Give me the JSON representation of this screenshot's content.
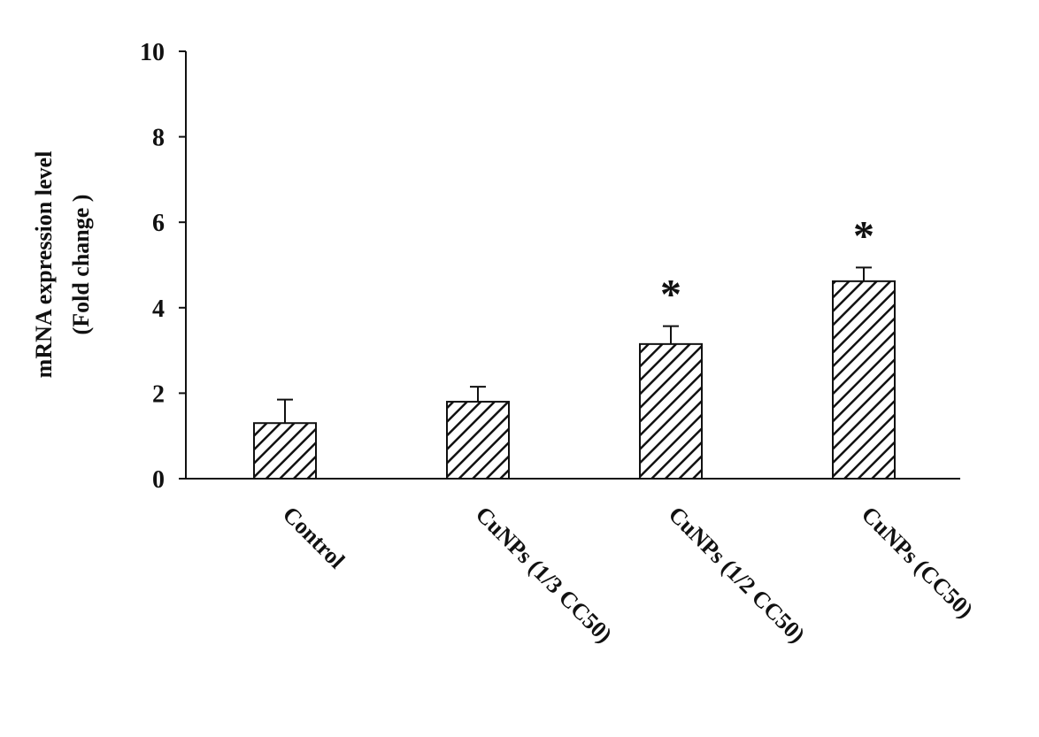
{
  "chart_data": {
    "type": "bar",
    "title": "",
    "xlabel": "",
    "ylabel": [
      "mRNA expression level",
      "(Fold change )"
    ],
    "categories": [
      "Control",
      "CuNPs (1/3 CC50)",
      "CuNPs (1/2 CC50)",
      "CuNPs (CC50)"
    ],
    "values": [
      1.3,
      1.8,
      3.15,
      4.62
    ],
    "errors": [
      0.55,
      0.35,
      0.42,
      0.32
    ],
    "significance": [
      "",
      "",
      "*",
      "*"
    ],
    "ylim": [
      0,
      10
    ],
    "yticks": [
      0,
      2,
      4,
      6,
      8,
      10
    ],
    "bar_fill": "hatched",
    "colors": {
      "bar_edge": "#111111",
      "hatch": "#111111",
      "background": "#ffffff",
      "axis": "#111111"
    }
  }
}
